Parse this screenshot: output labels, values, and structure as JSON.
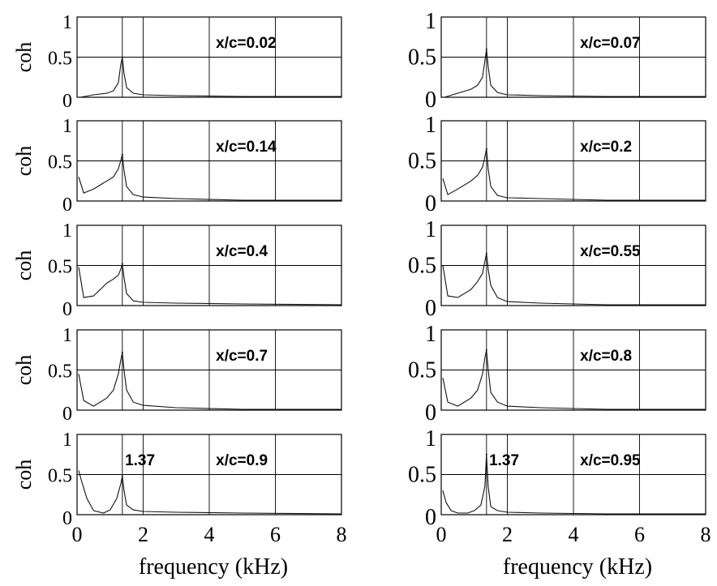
{
  "chart_data": {
    "type": "line",
    "layout": "5 rows x 2 columns of coherence spectra",
    "xlabel": "frequency (kHz)",
    "ylabel": "coh",
    "xlim": [
      0,
      8
    ],
    "ylim": [
      0,
      1
    ],
    "x_ticks": [
      "0",
      "2",
      "4",
      "6",
      "8"
    ],
    "y_ticks": [
      "0",
      "0.5",
      "1"
    ],
    "vertical_marker_khz": 1.37,
    "grid": true,
    "panels": [
      {
        "label": "x/c=0.02",
        "annotation": "",
        "peak": {
          "x": 1.37,
          "y": 0.5
        },
        "x": [
          0.1,
          0.5,
          0.9,
          1.1,
          1.25,
          1.32,
          1.37,
          1.42,
          1.5,
          1.7,
          2,
          3,
          5,
          8
        ],
        "y": [
          0,
          0.03,
          0.05,
          0.08,
          0.18,
          0.4,
          0.5,
          0.3,
          0.12,
          0.05,
          0.03,
          0.02,
          0.01,
          0.01
        ]
      },
      {
        "label": "x/c=0.07",
        "annotation": "",
        "peak": {
          "x": 1.37,
          "y": 0.6
        },
        "x": [
          0.1,
          0.5,
          0.9,
          1.1,
          1.25,
          1.32,
          1.37,
          1.42,
          1.5,
          1.7,
          2,
          3,
          5,
          8
        ],
        "y": [
          0,
          0.05,
          0.1,
          0.15,
          0.25,
          0.45,
          0.6,
          0.38,
          0.15,
          0.06,
          0.03,
          0.02,
          0.01,
          0.01
        ]
      },
      {
        "label": "x/c=0.14",
        "annotation": "",
        "peak": {
          "x": 1.37,
          "y": 0.58
        },
        "x": [
          0.05,
          0.2,
          0.5,
          0.9,
          1.1,
          1.25,
          1.32,
          1.37,
          1.42,
          1.5,
          1.7,
          2,
          3,
          5,
          8
        ],
        "y": [
          0.3,
          0.1,
          0.15,
          0.25,
          0.3,
          0.4,
          0.5,
          0.58,
          0.38,
          0.18,
          0.08,
          0.05,
          0.03,
          0.01,
          0.01
        ]
      },
      {
        "label": "x/c=0.2",
        "annotation": "",
        "peak": {
          "x": 1.37,
          "y": 0.65
        },
        "x": [
          0.05,
          0.2,
          0.5,
          0.9,
          1.1,
          1.25,
          1.32,
          1.37,
          1.42,
          1.5,
          1.7,
          2,
          3,
          5,
          8
        ],
        "y": [
          0.28,
          0.08,
          0.15,
          0.25,
          0.32,
          0.42,
          0.55,
          0.65,
          0.4,
          0.18,
          0.07,
          0.04,
          0.03,
          0.01,
          0.01
        ]
      },
      {
        "label": "x/c=0.4",
        "annotation": "",
        "peak": {
          "x": 1.37,
          "y": 0.52
        },
        "x": [
          0.05,
          0.2,
          0.5,
          0.9,
          1.1,
          1.25,
          1.32,
          1.37,
          1.42,
          1.5,
          1.7,
          2,
          3,
          5,
          8
        ],
        "y": [
          0.48,
          0.1,
          0.12,
          0.28,
          0.33,
          0.38,
          0.45,
          0.52,
          0.35,
          0.15,
          0.06,
          0.04,
          0.03,
          0.02,
          0.01
        ]
      },
      {
        "label": "x/c=0.55",
        "annotation": "",
        "peak": {
          "x": 1.37,
          "y": 0.65
        },
        "x": [
          0.05,
          0.2,
          0.5,
          0.9,
          1.1,
          1.25,
          1.32,
          1.37,
          1.42,
          1.5,
          1.7,
          2,
          3,
          5,
          8
        ],
        "y": [
          0.5,
          0.12,
          0.1,
          0.2,
          0.3,
          0.4,
          0.55,
          0.65,
          0.45,
          0.25,
          0.1,
          0.05,
          0.03,
          0.01,
          0.01
        ]
      },
      {
        "label": "x/c=0.7",
        "annotation": "",
        "peak": {
          "x": 1.37,
          "y": 0.72
        },
        "x": [
          0.05,
          0.2,
          0.5,
          0.9,
          1.1,
          1.25,
          1.32,
          1.37,
          1.42,
          1.5,
          1.7,
          2,
          3,
          5,
          8
        ],
        "y": [
          0.45,
          0.12,
          0.05,
          0.15,
          0.25,
          0.45,
          0.62,
          0.72,
          0.5,
          0.25,
          0.1,
          0.06,
          0.03,
          0.01,
          0.01
        ]
      },
      {
        "label": "x/c=0.8",
        "annotation": "",
        "peak": {
          "x": 1.37,
          "y": 0.75
        },
        "x": [
          0.05,
          0.2,
          0.5,
          0.9,
          1.1,
          1.25,
          1.32,
          1.37,
          1.42,
          1.5,
          1.7,
          2,
          3,
          5,
          8
        ],
        "y": [
          0.4,
          0.1,
          0.05,
          0.15,
          0.25,
          0.45,
          0.65,
          0.75,
          0.5,
          0.22,
          0.1,
          0.05,
          0.03,
          0.01,
          0.01
        ]
      },
      {
        "label": "x/c=0.9",
        "annotation": "1.37",
        "peak": {
          "x": 1.37,
          "y": 0.48
        },
        "x": [
          0.05,
          0.15,
          0.3,
          0.5,
          0.8,
          1.0,
          1.2,
          1.32,
          1.37,
          1.42,
          1.5,
          1.7,
          2,
          3,
          5,
          8
        ],
        "y": [
          0.55,
          0.4,
          0.2,
          0.05,
          0.02,
          0.06,
          0.2,
          0.38,
          0.48,
          0.3,
          0.12,
          0.06,
          0.04,
          0.03,
          0.02,
          0.01
        ]
      },
      {
        "label": "x/c=0.95",
        "annotation": "1.37",
        "peak": {
          "x": 1.37,
          "y": 0.75
        },
        "x": [
          0.05,
          0.15,
          0.3,
          0.5,
          0.8,
          1.0,
          1.2,
          1.32,
          1.37,
          1.42,
          1.5,
          1.7,
          2,
          3,
          5,
          8
        ],
        "y": [
          0.3,
          0.15,
          0.05,
          0.02,
          0.02,
          0.05,
          0.12,
          0.35,
          0.75,
          0.35,
          0.1,
          0.05,
          0.03,
          0.02,
          0.01,
          0.01
        ]
      }
    ]
  }
}
